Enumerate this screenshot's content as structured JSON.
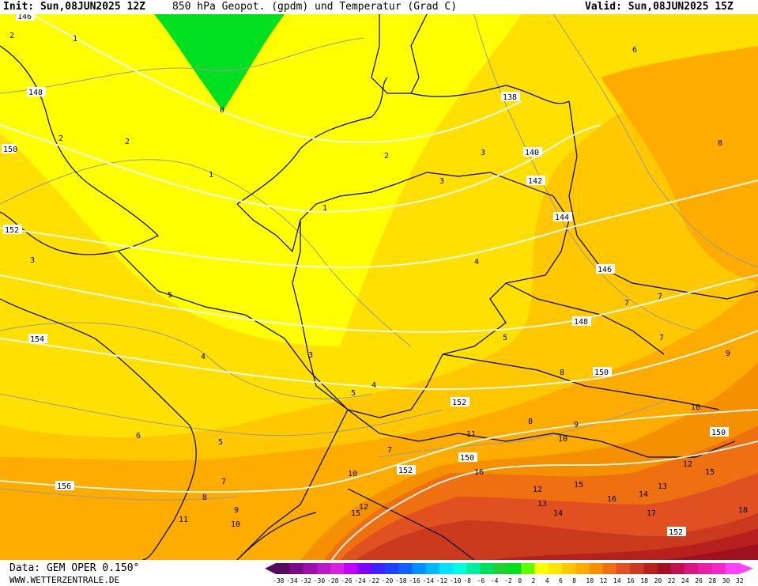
{
  "header": {
    "init": "Init: Sun,08JUN2025 12Z",
    "title": "850 hPa Geopot. (gpdm) und Temperatur (Grad C)",
    "valid": "Valid: Sun,08JUN2025 15Z"
  },
  "footer": {
    "source": "Data: GEM OPER 0.150°",
    "website": "WWW.WETTERZENTRALE.DE"
  },
  "colors": {
    "green_0": "#00e020",
    "yellow_2": "#ffff00",
    "yellow_4": "#ffe600",
    "amber_6": "#ffc800",
    "orange_8": "#ffac00",
    "orange_10": "#f59000",
    "orange_12": "#ee7010",
    "red_14": "#e05020",
    "red_16": "#cc3a1e",
    "red_18": "#b8201e",
    "red_20": "#a0101e",
    "contour_white": "#ffffff",
    "border_black": "#000000"
  },
  "geopotential_labels": [
    "146",
    "148",
    "150",
    "152",
    "154",
    "156",
    "138",
    "140",
    "142",
    "144",
    "146",
    "148",
    "150",
    "152",
    "150",
    "152",
    "150",
    "152"
  ],
  "temperature_labels": [
    "0",
    "1",
    "1",
    "1",
    "2",
    "2",
    "2",
    "2",
    "3",
    "3",
    "3",
    "3",
    "4",
    "4",
    "4",
    "5",
    "5",
    "5",
    "5",
    "6",
    "6",
    "7",
    "7",
    "7",
    "8",
    "8",
    "8",
    "9",
    "9",
    "10",
    "10",
    "10",
    "11",
    "12",
    "12",
    "13",
    "14",
    "15",
    "15",
    "16",
    "16",
    "17",
    "18",
    "7",
    "7",
    "8",
    "9",
    "10",
    "11",
    "12",
    "13",
    "14",
    "15"
  ],
  "scale": {
    "labels": [
      "-38",
      "-34",
      "-32",
      "-30",
      "-28",
      "-26",
      "-24",
      "-22",
      "-20",
      "-18",
      "-16",
      "-14",
      "-12",
      "-10",
      "-8",
      "-6",
      "-4",
      "-2",
      "0",
      "2",
      "4",
      "6",
      "8",
      "10",
      "12",
      "14",
      "16",
      "18",
      "20",
      "22",
      "24",
      "26",
      "28",
      "30",
      "32"
    ],
    "colors": [
      "#5a0a5a",
      "#7a0a8a",
      "#9a10a8",
      "#b818c8",
      "#d820e0",
      "#c000ff",
      "#8000ff",
      "#4020ff",
      "#2040ff",
      "#1060ff",
      "#0090ff",
      "#00b8ff",
      "#00e0ff",
      "#00ffe0",
      "#00f0a0",
      "#00e060",
      "#20d030",
      "#00e020",
      "#60ff00",
      "#ffff00",
      "#ffe600",
      "#ffc800",
      "#ffac00",
      "#f59000",
      "#ee7010",
      "#e05020",
      "#cc3a1e",
      "#b8201e",
      "#a0101e",
      "#c01050",
      "#d81880",
      "#e820a8",
      "#f028c8",
      "#ff40ff"
    ]
  }
}
